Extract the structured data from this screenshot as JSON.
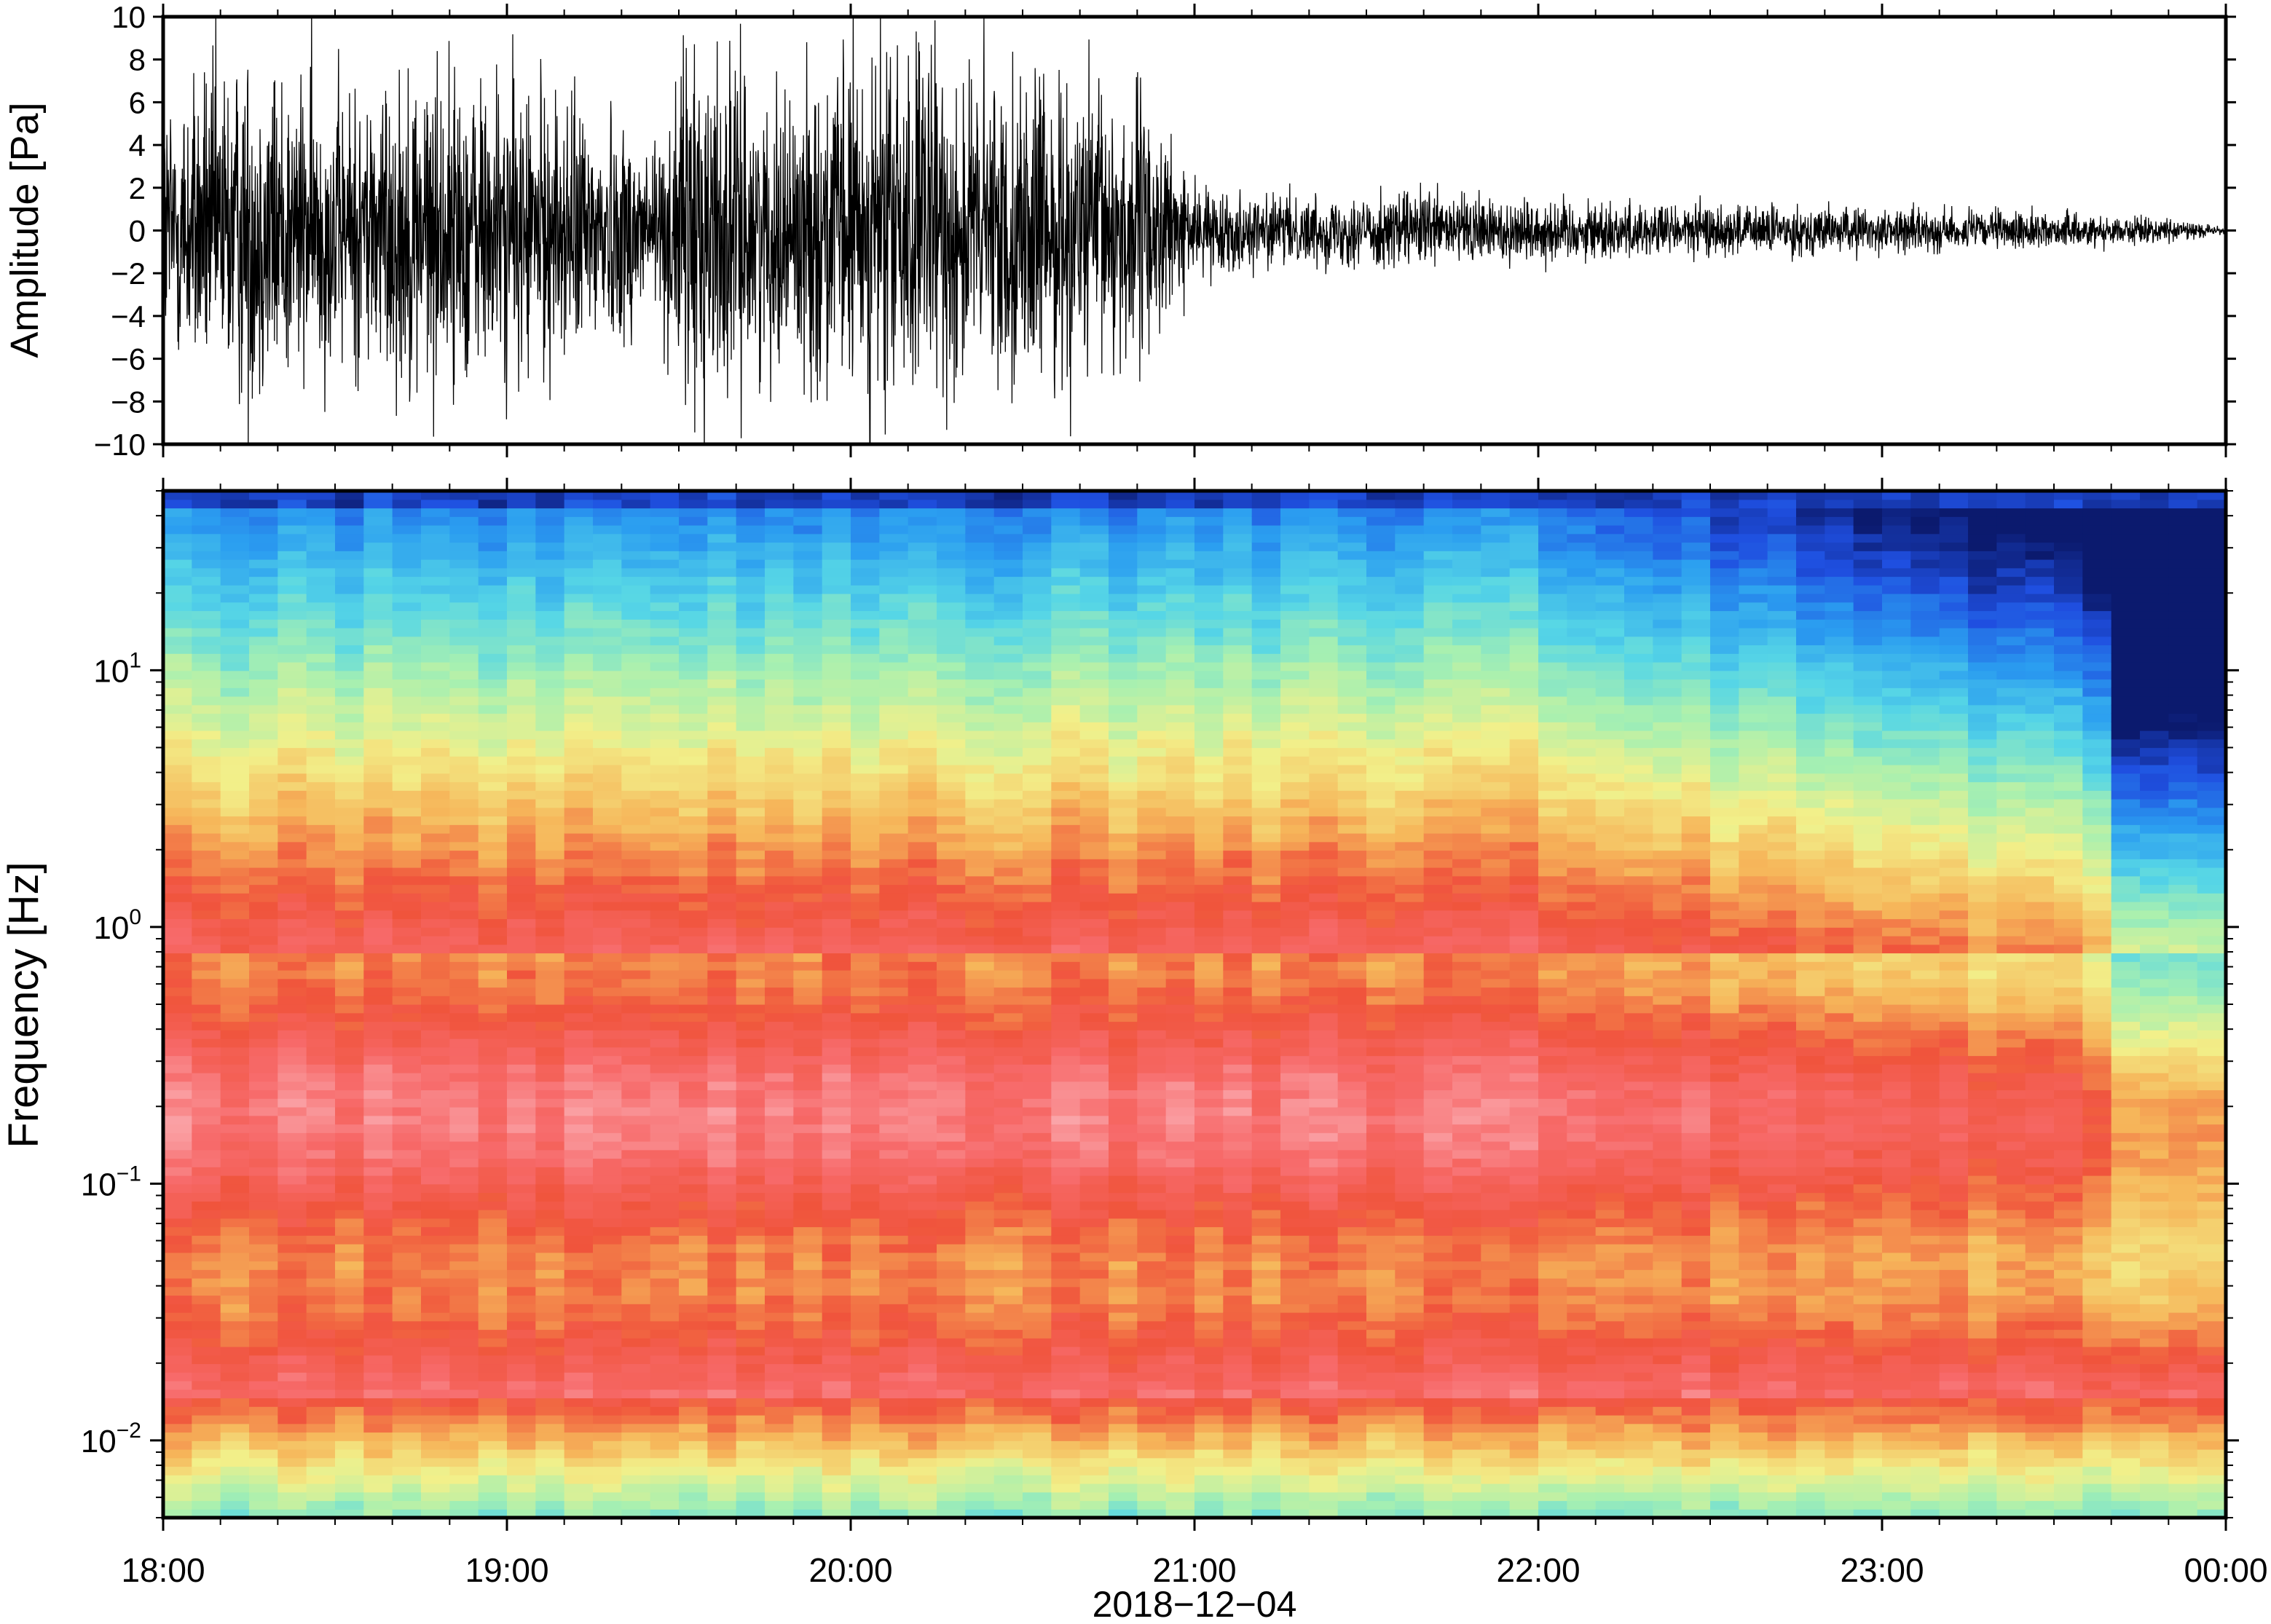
{
  "colors": {
    "trace": "#000000",
    "frame": "#000000",
    "background": "#ffffff",
    "colormap": [
      "#0b1a6e",
      "#1f4fe0",
      "#2b9ef0",
      "#56d6e6",
      "#a8f0b0",
      "#f2f08a",
      "#f6b65a",
      "#f0543c",
      "#f76a6a",
      "#fbb0b5"
    ]
  },
  "chart_data": [
    {
      "type": "line",
      "subtype": "waveform",
      "ylabel": "Amplitude [Pa]",
      "xlabel": "",
      "ylim": [
        -10,
        10
      ],
      "yticks": [
        "10",
        "8",
        "6",
        "4",
        "2",
        "0",
        "−2",
        "−4",
        "−6",
        "−8",
        "−10"
      ],
      "ytick_values": [
        10,
        8,
        6,
        4,
        2,
        0,
        -2,
        -4,
        -6,
        -8,
        -10
      ],
      "xlim": [
        "2018-12-04T18:00",
        "2018-12-05T00:00"
      ],
      "envelope": {
        "time_hours": [
          18.0,
          18.25,
          18.5,
          18.75,
          19.0,
          19.25,
          19.45,
          19.55,
          19.75,
          19.95,
          20.1,
          20.3,
          20.6,
          20.85,
          21.0,
          21.3,
          21.6,
          22.0,
          22.3,
          22.7,
          23.0,
          23.3,
          23.6,
          23.85,
          24.0
        ],
        "amplitude_pa": [
          5.0,
          6.5,
          5.0,
          6.0,
          5.5,
          4.5,
          3.5,
          7.5,
          4.5,
          6.0,
          7.0,
          6.0,
          5.5,
          5.0,
          1.5,
          1.2,
          1.4,
          1.2,
          1.0,
          0.9,
          0.8,
          0.7,
          0.6,
          0.4,
          0.1
        ]
      }
    },
    {
      "type": "heatmap",
      "subtype": "spectrogram",
      "ylabel": "Frequency [Hz]",
      "xlabel": "2018−12−04",
      "yscale": "log",
      "ylim_hz": [
        0.005,
        50
      ],
      "yticks": [
        {
          "base": "10",
          "exp": "1",
          "value": 10
        },
        {
          "base": "10",
          "exp": "0",
          "value": 1
        },
        {
          "base": "10",
          "exp": "−1",
          "value": 0.1
        },
        {
          "base": "10",
          "exp": "−2",
          "value": 0.01
        }
      ],
      "xticks": [
        "18:00",
        "19:00",
        "20:00",
        "21:00",
        "22:00",
        "23:00",
        "00:00"
      ],
      "xtick_hours": [
        18,
        19,
        20,
        21,
        22,
        23,
        24
      ],
      "grid": false,
      "colorbar": false
    }
  ]
}
